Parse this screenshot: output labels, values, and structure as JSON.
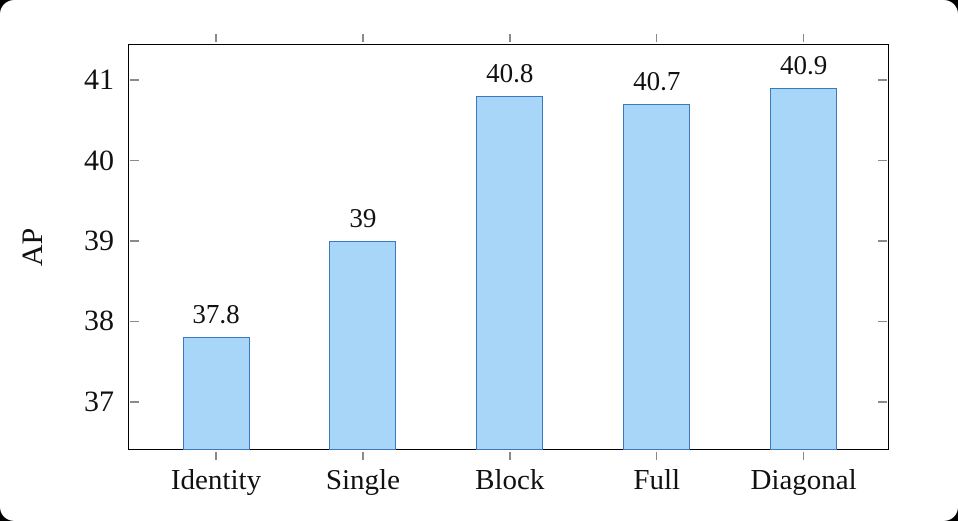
{
  "chart_data": {
    "type": "bar",
    "title": "",
    "categories": [
      "Identity",
      "Single",
      "Block",
      "Full",
      "Diagonal"
    ],
    "values": [
      37.8,
      39,
      40.8,
      40.7,
      40.9
    ],
    "value_labels": [
      "37.8",
      "39",
      "40.8",
      "40.7",
      "40.9"
    ],
    "xlabel": "",
    "ylabel": "AP",
    "yticks": [
      37,
      38,
      39,
      40,
      41
    ],
    "ylim": [
      36.4,
      41.45
    ],
    "grid": false,
    "legend": "none",
    "colors": {
      "bar_fill": "#a8d6f8",
      "bar_stroke": "#3b78be",
      "axis": "#000000",
      "tick": "#8a8a8a",
      "text": "#111111",
      "canvas_bg": "#ffffff",
      "page_bg": "#000000"
    }
  }
}
